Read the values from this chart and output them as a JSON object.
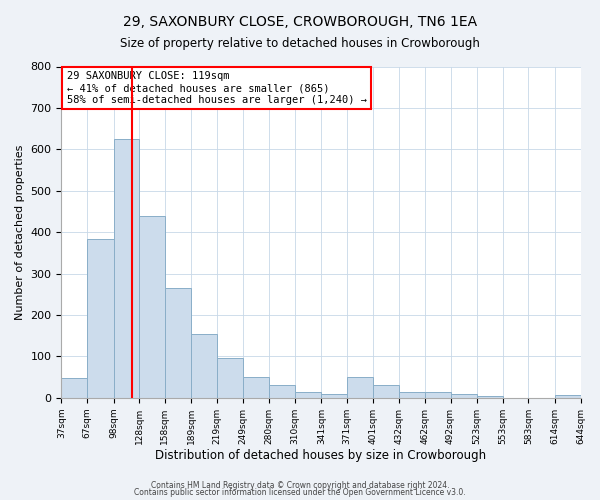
{
  "title": "29, SAXONBURY CLOSE, CROWBOROUGH, TN6 1EA",
  "subtitle": "Size of property relative to detached houses in Crowborough",
  "xlabel": "Distribution of detached houses by size in Crowborough",
  "ylabel": "Number of detached properties",
  "bar_edges": [
    37,
    67,
    98,
    128,
    158,
    189,
    219,
    249,
    280,
    310,
    341,
    371,
    401,
    432,
    462,
    492,
    523,
    553,
    583,
    614,
    644
  ],
  "bar_heights": [
    47,
    383,
    625,
    440,
    265,
    155,
    95,
    50,
    30,
    15,
    10,
    50,
    30,
    15,
    15,
    10,
    5,
    0,
    0,
    8
  ],
  "bar_color": "#ccdcec",
  "bar_edgecolor": "#89aec8",
  "vline_x": 119,
  "vline_color": "red",
  "annotation_title": "29 SAXONBURY CLOSE: 119sqm",
  "annotation_line1": "← 41% of detached houses are smaller (865)",
  "annotation_line2": "58% of semi-detached houses are larger (1,240) →",
  "annotation_box_color": "white",
  "annotation_box_edgecolor": "red",
  "ylim": [
    0,
    800
  ],
  "yticks": [
    0,
    100,
    200,
    300,
    400,
    500,
    600,
    700,
    800
  ],
  "tick_labels": [
    "37sqm",
    "67sqm",
    "98sqm",
    "128sqm",
    "158sqm",
    "189sqm",
    "219sqm",
    "249sqm",
    "280sqm",
    "310sqm",
    "341sqm",
    "371sqm",
    "401sqm",
    "432sqm",
    "462sqm",
    "492sqm",
    "523sqm",
    "553sqm",
    "583sqm",
    "614sqm",
    "644sqm"
  ],
  "footer1": "Contains HM Land Registry data © Crown copyright and database right 2024.",
  "footer2": "Contains public sector information licensed under the Open Government Licence v3.0.",
  "bg_color": "#eef2f7",
  "plot_bg_color": "#ffffff",
  "grid_color": "#c8d8e8"
}
